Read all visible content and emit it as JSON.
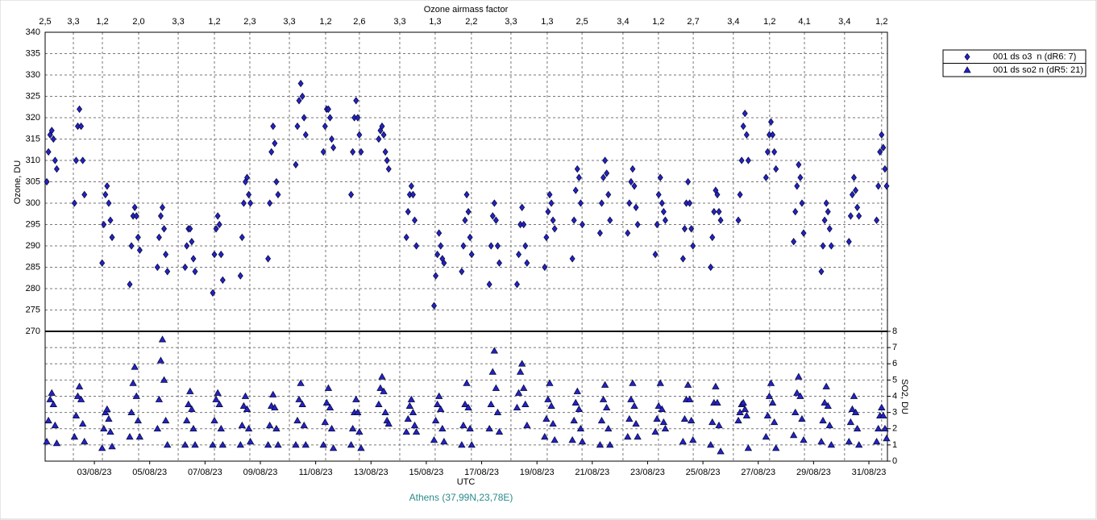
{
  "chart_data": {
    "type": "scatter",
    "title": "Ozone airmass factor",
    "xlabel": "UTC",
    "footer": "Athens (37,99N,23,78E)",
    "ylabel": "Ozone, DU",
    "y2label": "SO2, DU",
    "xlim": [
      1.22,
      31.67
    ],
    "xticks": [
      {
        "value": 3,
        "label": "03/08/23"
      },
      {
        "value": 5,
        "label": "05/08/23"
      },
      {
        "value": 7,
        "label": "07/08/23"
      },
      {
        "value": 9,
        "label": "09/08/23"
      },
      {
        "value": 11,
        "label": "11/08/23"
      },
      {
        "value": 13,
        "label": "13/08/23"
      },
      {
        "value": 15,
        "label": "15/08/23"
      },
      {
        "value": 17,
        "label": "17/08/23"
      },
      {
        "value": 19,
        "label": "19/08/23"
      },
      {
        "value": 21,
        "label": "21/08/23"
      },
      {
        "value": 23,
        "label": "23/08/23"
      },
      {
        "value": 25,
        "label": "25/08/23"
      },
      {
        "value": 27,
        "label": "27/08/23"
      },
      {
        "value": 29,
        "label": "29/08/23"
      },
      {
        "value": 31,
        "label": "31/08/23"
      }
    ],
    "x2ticks": [
      {
        "value": 1.22,
        "label": "2,5"
      },
      {
        "value": 2.24,
        "label": "3,3"
      },
      {
        "value": 3.29,
        "label": "1,2"
      },
      {
        "value": 4.6,
        "label": "2,0"
      },
      {
        "value": 6.03,
        "label": "3,3"
      },
      {
        "value": 7.34,
        "label": "1,2"
      },
      {
        "value": 8.62,
        "label": "2,3"
      },
      {
        "value": 10.05,
        "label": "3,3"
      },
      {
        "value": 11.36,
        "label": "1,2"
      },
      {
        "value": 12.58,
        "label": "2,6"
      },
      {
        "value": 14.04,
        "label": "3,3"
      },
      {
        "value": 15.32,
        "label": "1,3"
      },
      {
        "value": 16.63,
        "label": "2,2"
      },
      {
        "value": 18.06,
        "label": "3,3"
      },
      {
        "value": 19.37,
        "label": "1,3"
      },
      {
        "value": 20.63,
        "label": "2,5"
      },
      {
        "value": 22.11,
        "label": "3,4"
      },
      {
        "value": 23.39,
        "label": "1,2"
      },
      {
        "value": 24.65,
        "label": "2,7"
      },
      {
        "value": 26.1,
        "label": "3,4"
      },
      {
        "value": 27.41,
        "label": "1,2"
      },
      {
        "value": 28.67,
        "label": "4,1"
      },
      {
        "value": 30.12,
        "label": "3,4"
      },
      {
        "value": 31.46,
        "label": "1,2"
      }
    ],
    "ylim": [
      270,
      340
    ],
    "yticks": [
      270,
      275,
      280,
      285,
      290,
      295,
      300,
      305,
      310,
      315,
      320,
      325,
      330,
      335,
      340
    ],
    "y2lim": [
      0,
      8
    ],
    "y2ticks": [
      0,
      1,
      2,
      3,
      4,
      5,
      6,
      7,
      8
    ],
    "grid": true,
    "legend": "top-right",
    "x": [
      1.28,
      1.34,
      1.4,
      1.46,
      1.52,
      1.58,
      1.64,
      2.28,
      2.34,
      2.4,
      2.46,
      2.52,
      2.58,
      2.64,
      3.28,
      3.34,
      3.4,
      3.46,
      3.52,
      3.58,
      3.64,
      4.28,
      4.34,
      4.4,
      4.46,
      4.52,
      4.58,
      4.64,
      5.28,
      5.34,
      5.4,
      5.46,
      5.52,
      5.58,
      5.64,
      6.28,
      6.34,
      6.4,
      6.46,
      6.52,
      6.58,
      6.64,
      7.28,
      7.34,
      7.4,
      7.46,
      7.52,
      7.58,
      7.64,
      8.28,
      8.34,
      8.4,
      8.46,
      8.52,
      8.58,
      8.64,
      9.28,
      9.34,
      9.4,
      9.46,
      9.52,
      9.58,
      9.64,
      10.28,
      10.34,
      10.4,
      10.46,
      10.52,
      10.58,
      10.64,
      11.28,
      11.34,
      11.4,
      11.46,
      11.52,
      11.58,
      11.64,
      12.28,
      12.34,
      12.4,
      12.46,
      12.52,
      12.58,
      12.64,
      13.28,
      13.34,
      13.4,
      13.46,
      13.52,
      13.58,
      13.64,
      14.28,
      14.34,
      14.4,
      14.46,
      14.52,
      14.58,
      14.64,
      15.28,
      15.34,
      15.4,
      15.46,
      15.52,
      15.58,
      15.64,
      16.28,
      16.34,
      16.4,
      16.46,
      16.52,
      16.58,
      16.64,
      17.28,
      17.34,
      17.4,
      17.46,
      17.52,
      17.58,
      17.64,
      18.28,
      18.34,
      18.4,
      18.46,
      18.52,
      18.58,
      18.64,
      19.28,
      19.34,
      19.4,
      19.46,
      19.52,
      19.58,
      19.64,
      20.28,
      20.34,
      20.4,
      20.46,
      20.52,
      20.58,
      20.64,
      21.28,
      21.34,
      21.4,
      21.46,
      21.52,
      21.58,
      21.64,
      22.28,
      22.34,
      22.4,
      22.46,
      22.52,
      22.58,
      22.64,
      23.28,
      23.34,
      23.4,
      23.46,
      23.52,
      23.58,
      23.64,
      24.28,
      24.34,
      24.4,
      24.46,
      24.52,
      24.58,
      24.64,
      25.28,
      25.34,
      25.4,
      25.46,
      25.52,
      25.58,
      25.64,
      26.28,
      26.34,
      26.4,
      26.46,
      26.52,
      26.58,
      26.64,
      27.28,
      27.34,
      27.4,
      27.46,
      27.52,
      27.58,
      27.64,
      28.28,
      28.34,
      28.4,
      28.46,
      28.52,
      28.58,
      28.64,
      29.28,
      29.34,
      29.4,
      29.46,
      29.52,
      29.58,
      29.64,
      30.28,
      30.34,
      30.4,
      30.46,
      30.52,
      30.58,
      30.64,
      31.28,
      31.34,
      31.4,
      31.46,
      31.52,
      31.58,
      31.64
    ],
    "series": [
      {
        "name": "001 ds o3  n (dR6: 7)",
        "color": "#2323c8",
        "marker": "diamond",
        "axis": "y",
        "values": [
          305,
          312,
          316,
          317,
          315,
          310,
          308,
          300,
          310,
          318,
          322,
          318,
          310,
          302,
          286,
          295,
          302,
          304,
          300,
          296,
          292,
          281,
          290,
          297,
          299,
          297,
          292,
          289,
          285,
          292,
          297,
          299,
          294,
          288,
          284,
          285,
          290,
          294,
          294,
          291,
          287,
          284,
          279,
          288,
          294,
          297,
          295,
          288,
          282,
          283,
          292,
          300,
          305,
          306,
          302,
          300,
          287,
          300,
          312,
          318,
          314,
          305,
          302,
          309,
          318,
          324,
          328,
          325,
          320,
          316,
          312,
          318,
          322,
          322,
          320,
          315,
          313,
          302,
          312,
          320,
          324,
          320,
          316,
          312,
          315,
          317,
          318,
          316,
          312,
          310,
          308,
          292,
          298,
          302,
          304,
          302,
          296,
          290,
          276,
          283,
          288,
          293,
          290,
          287,
          286,
          284,
          290,
          296,
          302,
          298,
          292,
          288,
          281,
          290,
          297,
          300,
          296,
          290,
          286,
          281,
          288,
          295,
          299,
          295,
          290,
          286,
          285,
          292,
          298,
          302,
          300,
          296,
          294,
          287,
          296,
          303,
          308,
          306,
          300,
          295,
          293,
          300,
          306,
          310,
          307,
          302,
          296,
          293,
          300,
          305,
          308,
          304,
          299,
          295,
          288,
          295,
          302,
          306,
          300,
          298,
          296,
          287,
          294,
          300,
          305,
          300,
          294,
          290,
          285,
          292,
          298,
          303,
          302,
          298,
          296,
          296,
          302,
          310,
          318,
          321,
          316,
          310,
          306,
          312,
          316,
          319,
          316,
          312,
          308,
          291,
          298,
          304,
          309,
          306,
          300,
          293,
          284,
          290,
          296,
          300,
          298,
          294,
          290,
          291,
          297,
          302,
          306,
          303,
          299,
          297,
          296,
          304,
          312,
          316,
          313,
          308,
          304
        ]
      },
      {
        "name": "001 ds so2 n (dR5: 21)",
        "color": "#2323c8",
        "marker": "triangle",
        "axis": "y2",
        "values": [
          1.2,
          2.5,
          3.8,
          4.2,
          3.5,
          2.2,
          1.1,
          1.5,
          2.8,
          4,
          4.6,
          3.8,
          2.3,
          1.2,
          0.8,
          2,
          3,
          3.2,
          2.6,
          1.8,
          0.9,
          1.5,
          3,
          4.8,
          5.8,
          4,
          2.5,
          1.5,
          2,
          3.8,
          6.2,
          7.5,
          5,
          2.5,
          1,
          1,
          2.5,
          3.5,
          4.3,
          3.2,
          2,
          1,
          1,
          2.5,
          3.8,
          4.2,
          3.5,
          2,
          1,
          1,
          2.2,
          3.4,
          4,
          3.2,
          2,
          1.2,
          1,
          2.2,
          3.4,
          4.1,
          3.3,
          2,
          1,
          1,
          2.5,
          3.8,
          4.8,
          3.5,
          2.2,
          1,
          1,
          2.4,
          3.6,
          4.5,
          3.3,
          2,
          0.8,
          1,
          2,
          3,
          3.8,
          3,
          1.8,
          0.8,
          3.5,
          4.5,
          5.2,
          4.3,
          3,
          2.5,
          2.3,
          1.8,
          2.6,
          3.4,
          3.8,
          3,
          2.2,
          1.8,
          1.3,
          2.5,
          3.5,
          4,
          3.2,
          2,
          1.2,
          1,
          2.2,
          3.5,
          4.8,
          3.3,
          2,
          1,
          2,
          3.5,
          5.5,
          6.8,
          4.5,
          3,
          1.8,
          3.3,
          4.2,
          5.5,
          6,
          4.5,
          3.5,
          2.2,
          1.5,
          2.6,
          3.8,
          4.8,
          3.4,
          2.3,
          1.3,
          1.3,
          2.5,
          3.6,
          4.3,
          3.2,
          2,
          1.2,
          1,
          2.5,
          3.8,
          4.7,
          3.3,
          2,
          1,
          1.5,
          2.6,
          3.8,
          4.8,
          3.4,
          2.3,
          1.5,
          1.8,
          2.6,
          3.4,
          4.8,
          3.2,
          2.4,
          2,
          1.2,
          2.6,
          3.8,
          4.7,
          3.8,
          2.5,
          1.3,
          1,
          2.4,
          3.6,
          4.6,
          3.6,
          2.2,
          0.6,
          2.5,
          3,
          3.5,
          3.6,
          3.2,
          2.8,
          0.8,
          1.5,
          2.8,
          4,
          4.8,
          3.6,
          2.4,
          0.8,
          1.6,
          3,
          4.2,
          5.2,
          4,
          2.6,
          1.3,
          1.2,
          2.5,
          3.6,
          4.6,
          3.4,
          2.2,
          1,
          1.2,
          2.4,
          3.2,
          4,
          3,
          2,
          1,
          1.2,
          2,
          2.8,
          3.3,
          2.8,
          2,
          1.4
        ]
      }
    ]
  }
}
